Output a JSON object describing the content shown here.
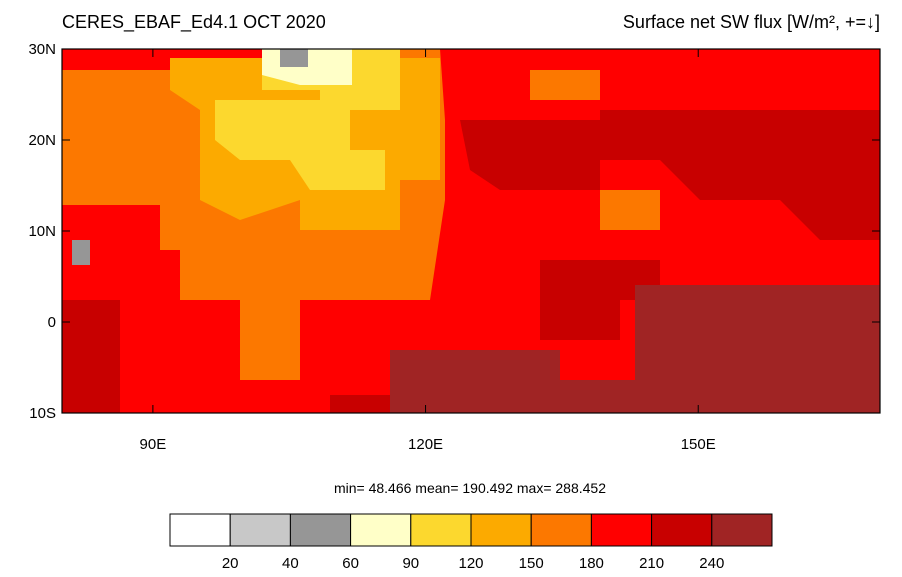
{
  "chart_data": {
    "type": "contour-map",
    "title_left": "CERES_EBAF_Ed4.1 OCT 2020",
    "title_right": "Surface net SW flux [W/m², +=↓]",
    "xlim": [
      80,
      170
    ],
    "ylim": [
      -10,
      30
    ],
    "xticks": [
      {
        "value": 90,
        "label": "90E"
      },
      {
        "value": 120,
        "label": "120E"
      },
      {
        "value": 150,
        "label": "150E"
      }
    ],
    "yticks": [
      {
        "value": 30,
        "label": "30N"
      },
      {
        "value": 20,
        "label": "20N"
      },
      {
        "value": 10,
        "label": "10N"
      },
      0,
      {
        "value": -10,
        "label": "10S"
      }
    ],
    "stats": "min=  48.466  mean= 190.492  max= 288.452",
    "colorbar": {
      "colors": [
        "#ffffff",
        "#c8c8c8",
        "#969696",
        "#ffffc8",
        "#fcd82e",
        "#fcaa00",
        "#fc7800",
        "#ff0000",
        "#c80000",
        "#a02424"
      ],
      "levels": [
        20,
        40,
        60,
        90,
        120,
        150,
        180,
        210,
        240
      ]
    }
  }
}
